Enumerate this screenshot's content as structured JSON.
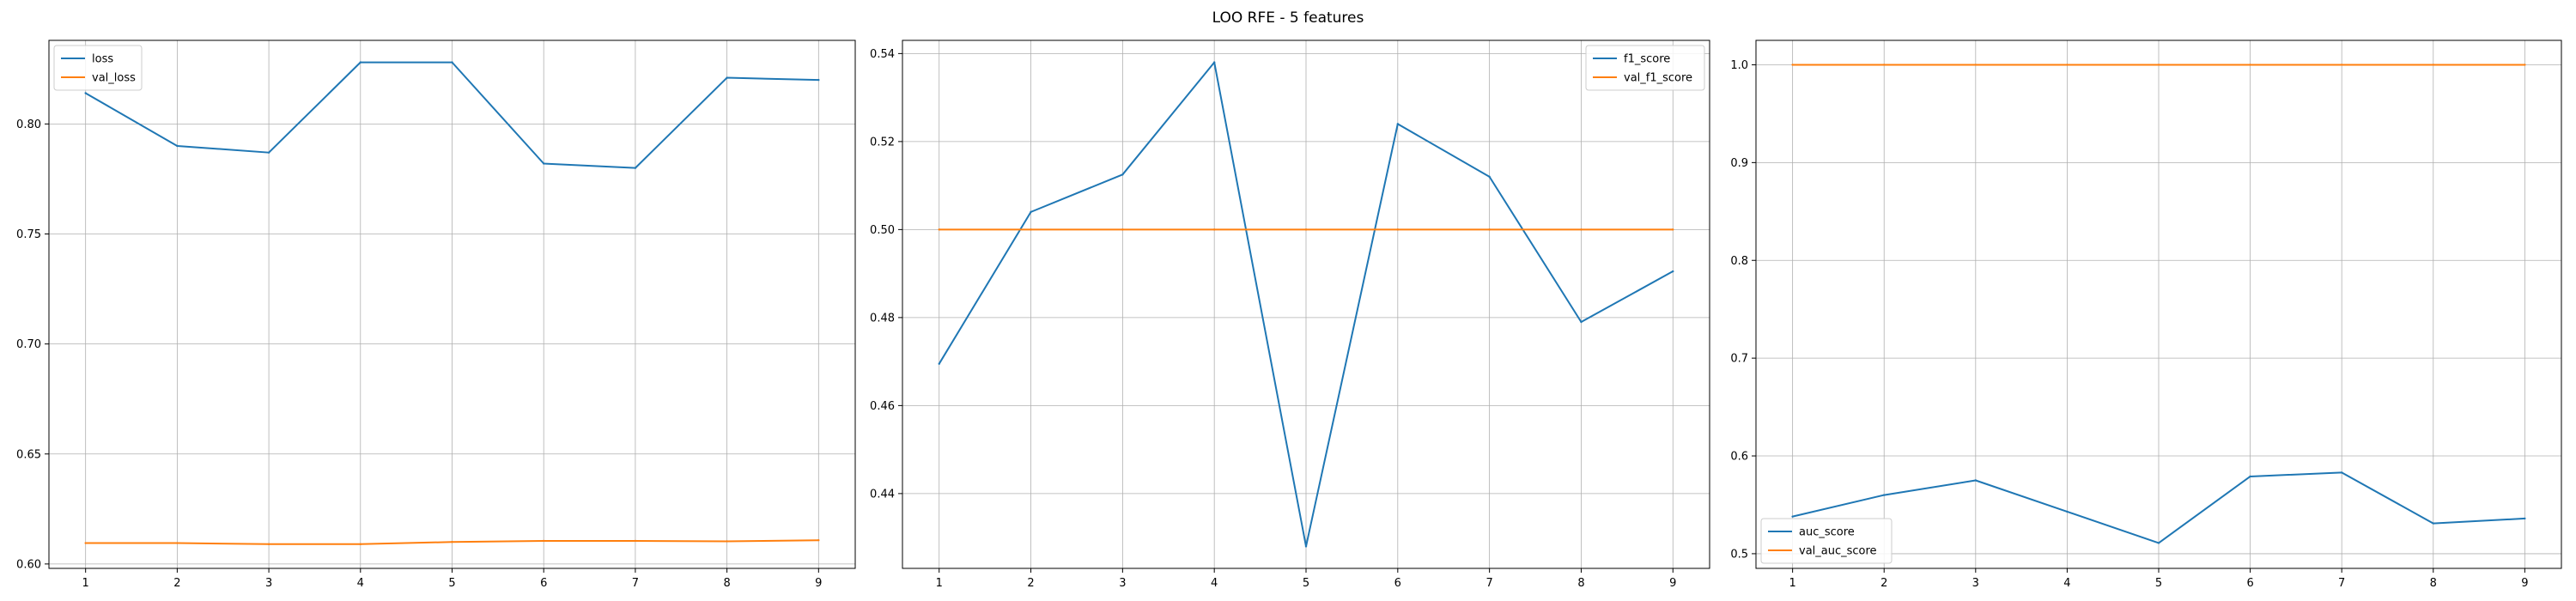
{
  "figure": {
    "title": "LOO RFE - 5 features"
  },
  "chart_data": [
    {
      "type": "line",
      "title": "",
      "xlabel": "",
      "ylabel": "",
      "x": [
        1,
        2,
        3,
        4,
        5,
        6,
        7,
        8,
        9
      ],
      "xticks": [
        "1",
        "2",
        "3",
        "4",
        "5",
        "6",
        "7",
        "8",
        "9"
      ],
      "xlim": [
        0.6,
        9.4
      ],
      "ylim": [
        0.598,
        0.838
      ],
      "yticks": [
        0.6,
        0.65,
        0.7,
        0.75,
        0.8
      ],
      "ytick_labels": [
        "0.60",
        "0.65",
        "0.70",
        "0.75",
        "0.80"
      ],
      "grid": true,
      "legend": "upper-left",
      "series": [
        {
          "name": "loss",
          "color": "#1f77b4",
          "values": [
            0.814,
            0.79,
            0.787,
            0.828,
            0.828,
            0.782,
            0.78,
            0.821,
            0.82
          ]
        },
        {
          "name": "val_loss",
          "color": "#ff7f0e",
          "values": [
            0.6095,
            0.6095,
            0.609,
            0.609,
            0.61,
            0.6105,
            0.6105,
            0.6103,
            0.6108
          ]
        }
      ]
    },
    {
      "type": "line",
      "title": "",
      "xlabel": "",
      "ylabel": "",
      "x": [
        1,
        2,
        3,
        4,
        5,
        6,
        7,
        8,
        9
      ],
      "xticks": [
        "1",
        "2",
        "3",
        "4",
        "5",
        "6",
        "7",
        "8",
        "9"
      ],
      "xlim": [
        0.6,
        9.4
      ],
      "ylim": [
        0.423,
        0.543
      ],
      "yticks": [
        0.44,
        0.46,
        0.48,
        0.5,
        0.52,
        0.54
      ],
      "ytick_labels": [
        "0.44",
        "0.46",
        "0.48",
        "0.50",
        "0.52",
        "0.54"
      ],
      "grid": true,
      "legend": "upper-right",
      "series": [
        {
          "name": "f1_score",
          "color": "#1f77b4",
          "values": [
            0.4695,
            0.504,
            0.5125,
            0.538,
            0.428,
            0.524,
            0.512,
            0.479,
            0.4905
          ]
        },
        {
          "name": "val_f1_score",
          "color": "#ff7f0e",
          "values": [
            0.5,
            0.5,
            0.5,
            0.5,
            0.5,
            0.5,
            0.5,
            0.5,
            0.5
          ]
        }
      ]
    },
    {
      "type": "line",
      "title": "",
      "xlabel": "",
      "ylabel": "",
      "x": [
        1,
        2,
        3,
        4,
        5,
        6,
        7,
        8,
        9
      ],
      "xticks": [
        "1",
        "2",
        "3",
        "4",
        "5",
        "6",
        "7",
        "8",
        "9"
      ],
      "xlim": [
        0.6,
        9.4
      ],
      "ylim": [
        0.485,
        1.025
      ],
      "yticks": [
        0.5,
        0.6,
        0.7,
        0.8,
        0.9,
        1.0
      ],
      "ytick_labels": [
        "0.5",
        "0.6",
        "0.7",
        "0.8",
        "0.9",
        "1.0"
      ],
      "grid": true,
      "legend": "lower-left",
      "series": [
        {
          "name": "auc_score",
          "color": "#1f77b4",
          "values": [
            0.538,
            0.56,
            0.575,
            0.543,
            0.511,
            0.579,
            0.583,
            0.531,
            0.536
          ]
        },
        {
          "name": "val_auc_score",
          "color": "#ff7f0e",
          "values": [
            1.0,
            1.0,
            1.0,
            1.0,
            1.0,
            1.0,
            1.0,
            1.0,
            1.0
          ]
        }
      ]
    }
  ]
}
